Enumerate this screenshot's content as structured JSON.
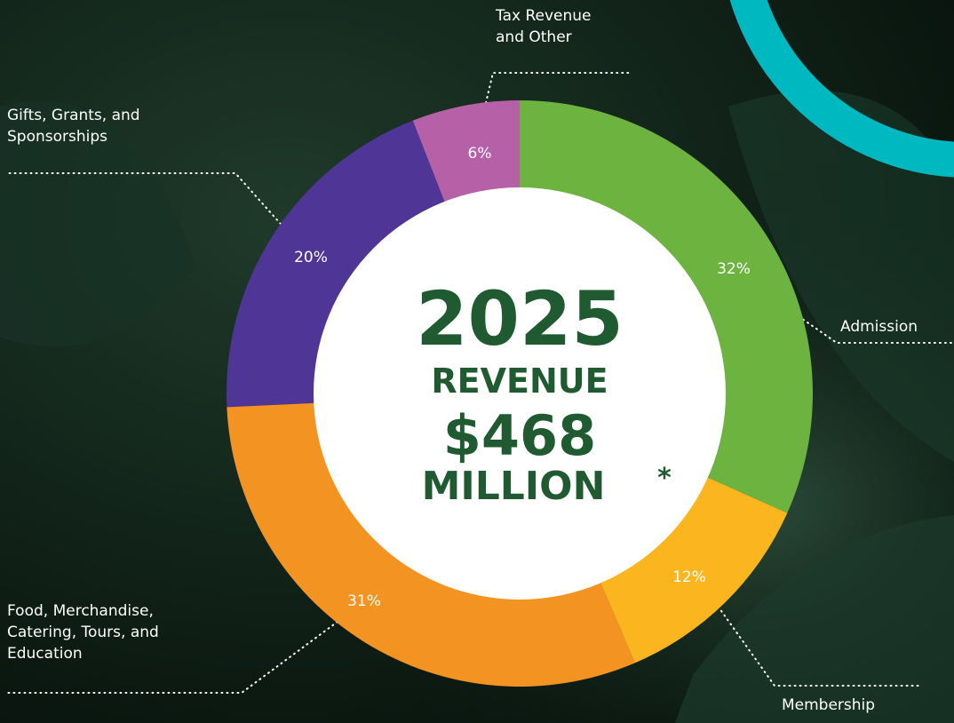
{
  "chart_data": {
    "type": "donut",
    "center_text": {
      "year": "2025",
      "line1": "REVENUE",
      "amount": "$468",
      "line2": "MILLION",
      "note": "*"
    },
    "categories": [
      "Admission",
      "Membership",
      "Food, Merchandise, Catering, Tours, and Education",
      "Gifts, Grants, and Sponsorships",
      "Tax Revenue and Other"
    ],
    "values": [
      32,
      12,
      31,
      20,
      6
    ],
    "value_labels": [
      "32%",
      "12%",
      "31%",
      "20%",
      "6%"
    ],
    "colors": [
      "#6cb33f",
      "#fbb61f",
      "#f39322",
      "#4e3596",
      "#b660a8"
    ]
  }
}
